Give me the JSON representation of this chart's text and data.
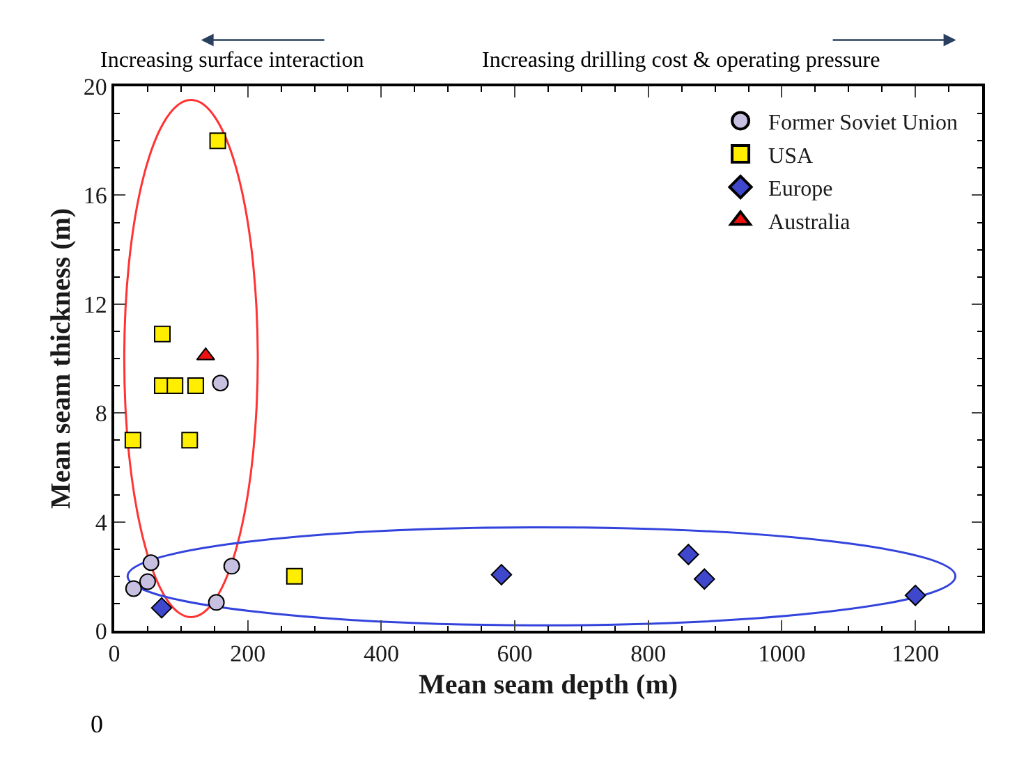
{
  "chart_data": {
    "type": "scatter",
    "xlabel": "Mean seam depth (m)",
    "ylabel": "Mean seam thickness (m)",
    "annotations": [
      "Increasing surface interaction",
      "Increasing drilling cost & operating pressure",
      "0"
    ],
    "xlim": [
      0,
      1300
    ],
    "ylim": [
      0,
      20
    ],
    "xticks": [
      0,
      200,
      400,
      600,
      800,
      1000,
      1200
    ],
    "yticks": [
      0,
      4,
      8,
      12,
      16,
      20
    ],
    "grid": false,
    "legend": "top right",
    "series": [
      {
        "name": "Former Soviet Union",
        "color": "#c8c0e0",
        "marker": "circle",
        "x": [
          159,
          55,
          50,
          29,
          176,
          153
        ],
        "values": [
          9.1,
          2.5,
          1.8,
          1.55,
          2.37,
          1.04
        ]
      },
      {
        "name": "USA",
        "color": "#ffee00",
        "marker": "square",
        "x": [
          155,
          72,
          72,
          91,
          122,
          28,
          113,
          270
        ],
        "values": [
          18.0,
          10.9,
          9.0,
          9.0,
          9.0,
          7.0,
          7.0,
          2.0
        ]
      },
      {
        "name": "Europe",
        "color": "#3f48cc",
        "marker": "diamond",
        "x": [
          71,
          580,
          860,
          884,
          1200
        ],
        "values": [
          0.84,
          2.06,
          2.8,
          1.9,
          1.3
        ]
      },
      {
        "name": "Australia",
        "color": "#ee1111",
        "marker": "triangle",
        "x": [
          137
        ],
        "values": [
          10.1
        ]
      }
    ]
  }
}
